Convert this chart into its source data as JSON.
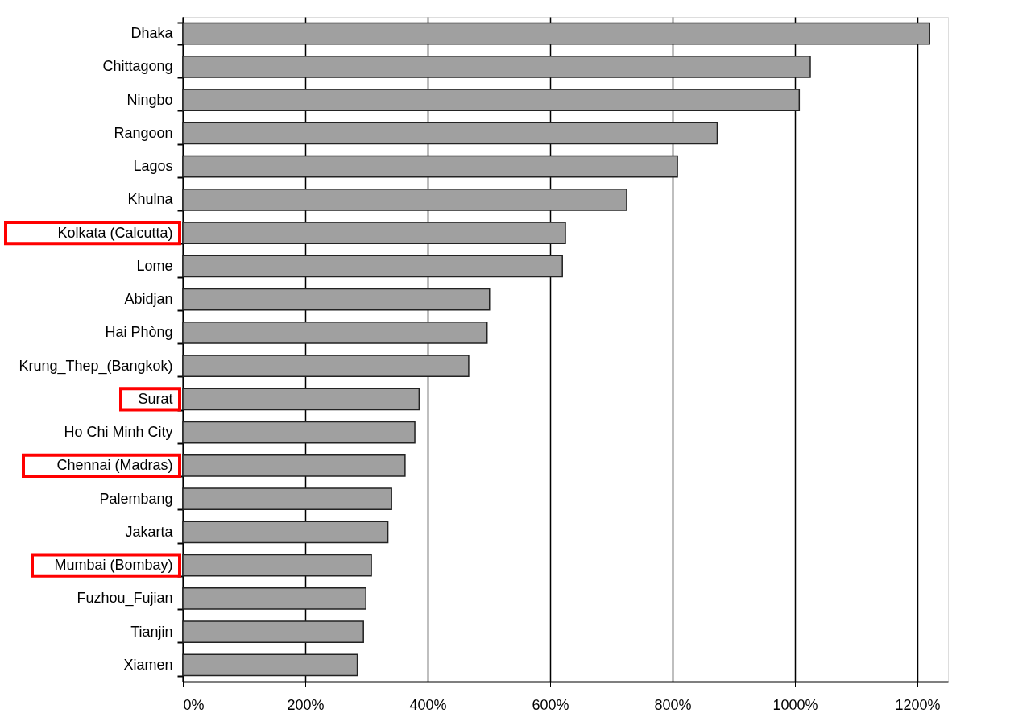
{
  "chart_data": {
    "type": "bar",
    "orientation": "horizontal",
    "categories": [
      "Dhaka",
      "Chittagong",
      "Ningbo",
      "Rangoon",
      "Lagos",
      "Khulna",
      "Kolkata (Calcutta)",
      "Lome",
      "Abidjan",
      "Hai Phòng",
      "Krung_Thep_(Bangkok)",
      "Surat",
      "Ho Chi Minh City",
      "Chennai (Madras)",
      "Palembang",
      "Jakarta",
      "Mumbai (Bombay)",
      "Fuzhou_Fujian",
      "Tianjin",
      "Xiamen"
    ],
    "values": [
      1220,
      1025,
      1007,
      873,
      808,
      725,
      625,
      620,
      501,
      497,
      467,
      386,
      379,
      363,
      341,
      335,
      308,
      299,
      295,
      285
    ],
    "color": "#a0a0a0",
    "xlim": [
      0,
      1250
    ],
    "xticks": [
      {
        "value": 0,
        "label": "0%"
      },
      {
        "value": 200,
        "label": "200%"
      },
      {
        "value": 400,
        "label": "400%"
      },
      {
        "value": 600,
        "label": "600%"
      },
      {
        "value": 800,
        "label": "800%"
      },
      {
        "value": 1000,
        "label": "1000%"
      },
      {
        "value": 1200,
        "label": "1200%"
      }
    ],
    "grid": "x"
  }
}
